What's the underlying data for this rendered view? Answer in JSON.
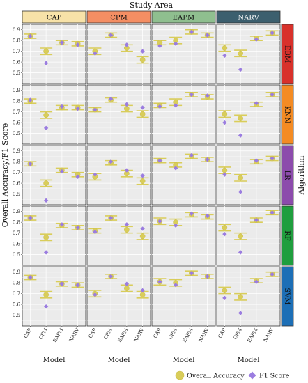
{
  "chart_data": {
    "type": "scatter",
    "title": "Study Area",
    "xlabel": "Model",
    "ylabel": "Overall Accuracy/F1 Score",
    "row_label": "Algorithm",
    "ylim": [
      0.4,
      0.95
    ],
    "yticks": [
      0.5,
      0.6,
      0.7,
      0.8,
      0.9
    ],
    "grid": true,
    "legend_position": "bottom-right",
    "categories": [
      "CAP",
      "CPM",
      "EAPM",
      "NARV"
    ],
    "columns": [
      {
        "name": "CAP",
        "color": "#f7e2a8"
      },
      {
        "name": "CPM",
        "color": "#f48e63"
      },
      {
        "name": "EAPM",
        "color": "#8fbf8f"
      },
      {
        "name": "NARV",
        "color": "#3c5f6e"
      }
    ],
    "rows": [
      {
        "name": "EBM",
        "color": "#d8312b"
      },
      {
        "name": "KNN",
        "color": "#f48b23"
      },
      {
        "name": "LR",
        "color": "#8c4bac"
      },
      {
        "name": "RF",
        "color": "#1f9e3e"
      },
      {
        "name": "SVM",
        "color": "#1d6fb6"
      }
    ],
    "series": [
      {
        "name": "Overall Accuracy",
        "color": "#d9cd5a",
        "values": {
          "EBM": {
            "CAP": [
              0.84,
              0.7,
              0.78,
              0.77
            ],
            "CPM": [
              0.7,
              0.85,
              0.73,
              0.62
            ],
            "EAPM": [
              0.78,
              0.8,
              0.88,
              0.85
            ],
            "NARV": [
              0.73,
              0.68,
              0.82,
              0.87
            ]
          },
          "KNN": {
            "CAP": [
              0.8,
              0.67,
              0.74,
              0.74
            ],
            "CPM": [
              0.72,
              0.81,
              0.73,
              0.68
            ],
            "EAPM": [
              0.76,
              0.79,
              0.86,
              0.84
            ],
            "NARV": [
              0.68,
              0.64,
              0.77,
              0.86
            ]
          },
          "LR": {
            "CAP": [
              0.78,
              0.6,
              0.72,
              0.68
            ],
            "CPM": [
              0.66,
              0.79,
              0.69,
              0.62
            ],
            "EAPM": [
              0.81,
              0.77,
              0.85,
              0.82
            ],
            "NARV": [
              0.72,
              0.65,
              0.8,
              0.83
            ]
          },
          "RF": {
            "CAP": [
              0.84,
              0.66,
              0.77,
              0.75
            ],
            "CPM": [
              0.72,
              0.84,
              0.73,
              0.67
            ],
            "EAPM": [
              0.81,
              0.8,
              0.87,
              0.85
            ],
            "NARV": [
              0.75,
              0.67,
              0.82,
              0.89
            ]
          },
          "SVM": {
            "CAP": [
              0.85,
              0.69,
              0.79,
              0.78
            ],
            "CPM": [
              0.7,
              0.86,
              0.75,
              0.69
            ],
            "EAPM": [
              0.81,
              0.8,
              0.89,
              0.86
            ],
            "NARV": [
              0.73,
              0.67,
              0.82,
              0.88
            ]
          }
        },
        "errors": {
          "EBM": {
            "CAP": [
              0.02,
              0.03,
              0.02,
              0.02
            ],
            "CPM": [
              0.03,
              0.02,
              0.03,
              0.03
            ],
            "EAPM": [
              0.02,
              0.03,
              0.02,
              0.02
            ],
            "NARV": [
              0.03,
              0.03,
              0.02,
              0.02
            ]
          },
          "KNN": {
            "CAP": [
              0.02,
              0.03,
              0.02,
              0.02
            ],
            "CPM": [
              0.02,
              0.02,
              0.03,
              0.03
            ],
            "EAPM": [
              0.02,
              0.03,
              0.02,
              0.02
            ],
            "NARV": [
              0.03,
              0.03,
              0.02,
              0.02
            ]
          },
          "LR": {
            "CAP": [
              0.02,
              0.03,
              0.02,
              0.02
            ],
            "CPM": [
              0.03,
              0.02,
              0.03,
              0.03
            ],
            "EAPM": [
              0.02,
              0.02,
              0.02,
              0.02
            ],
            "NARV": [
              0.03,
              0.03,
              0.02,
              0.02
            ]
          },
          "RF": {
            "CAP": [
              0.02,
              0.03,
              0.02,
              0.02
            ],
            "CPM": [
              0.02,
              0.02,
              0.03,
              0.03
            ],
            "EAPM": [
              0.03,
              0.03,
              0.02,
              0.02
            ],
            "NARV": [
              0.03,
              0.03,
              0.02,
              0.02
            ]
          },
          "SVM": {
            "CAP": [
              0.02,
              0.03,
              0.02,
              0.02
            ],
            "CPM": [
              0.03,
              0.02,
              0.03,
              0.03
            ],
            "EAPM": [
              0.03,
              0.03,
              0.02,
              0.02
            ],
            "NARV": [
              0.03,
              0.03,
              0.02,
              0.02
            ]
          }
        }
      },
      {
        "name": "F1 Score",
        "color": "#9b7de0",
        "values": {
          "EBM": {
            "CAP": [
              0.84,
              0.59,
              0.78,
              0.76
            ],
            "CPM": [
              0.68,
              0.85,
              0.76,
              0.7
            ],
            "EAPM": [
              0.75,
              0.77,
              0.88,
              0.85
            ],
            "NARV": [
              0.66,
              0.53,
              0.81,
              0.87
            ]
          },
          "KNN": {
            "CAP": [
              0.81,
              0.55,
              0.75,
              0.73
            ],
            "CPM": [
              0.72,
              0.82,
              0.77,
              0.74
            ],
            "EAPM": [
              0.75,
              0.76,
              0.86,
              0.85
            ],
            "NARV": [
              0.6,
              0.48,
              0.78,
              0.86
            ]
          },
          "LR": {
            "CAP": [
              0.78,
              0.44,
              0.71,
              0.66
            ],
            "CPM": [
              0.68,
              0.8,
              0.72,
              0.67
            ],
            "EAPM": [
              0.81,
              0.74,
              0.86,
              0.82
            ],
            "NARV": [
              0.68,
              0.52,
              0.81,
              0.83
            ]
          },
          "RF": {
            "CAP": [
              0.84,
              0.52,
              0.78,
              0.75
            ],
            "CPM": [
              0.71,
              0.84,
              0.78,
              0.74
            ],
            "EAPM": [
              0.81,
              0.77,
              0.88,
              0.86
            ],
            "NARV": [
              0.69,
              0.52,
              0.82,
              0.89
            ]
          },
          "SVM": {
            "CAP": [
              0.85,
              0.58,
              0.79,
              0.78
            ],
            "CPM": [
              0.69,
              0.86,
              0.79,
              0.73
            ],
            "EAPM": [
              0.81,
              0.78,
              0.89,
              0.86
            ],
            "NARV": [
              0.66,
              0.52,
              0.81,
              0.88
            ]
          }
        }
      }
    ]
  }
}
